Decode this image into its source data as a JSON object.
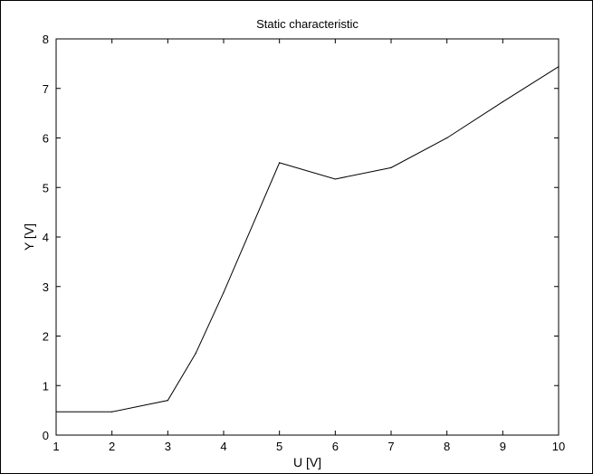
{
  "chart_data": {
    "type": "line",
    "title": "Static characteristic",
    "xlabel": "U [V]",
    "ylabel": "Y [V]",
    "xlim": [
      1,
      10
    ],
    "ylim": [
      0,
      8
    ],
    "xticks": [
      1,
      2,
      3,
      4,
      5,
      6,
      7,
      8,
      9,
      10
    ],
    "yticks": [
      0,
      1,
      2,
      3,
      4,
      5,
      6,
      7,
      8
    ],
    "grid": false,
    "series": [
      {
        "x": [
          1,
          2,
          3,
          3.5,
          4,
          5,
          6,
          7,
          8,
          9,
          10
        ],
        "y": [
          0.47,
          0.47,
          0.7,
          1.65,
          2.88,
          5.5,
          5.17,
          5.4,
          6.0,
          6.73,
          7.44
        ],
        "color": "#000000"
      }
    ]
  }
}
